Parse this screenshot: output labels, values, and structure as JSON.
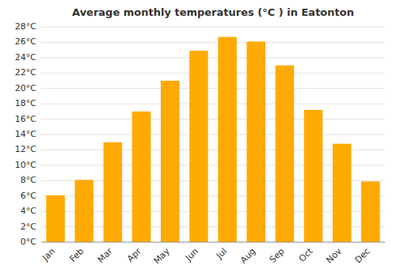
{
  "chart_data": {
    "type": "bar",
    "title": "Average monthly temperatures (°C ) in Eatonton",
    "categories": [
      "Jan",
      "Feb",
      "Mar",
      "Apr",
      "May",
      "Jun",
      "Jul",
      "Aug",
      "Sep",
      "Oct",
      "Nov",
      "Dec"
    ],
    "values": [
      6.1,
      8.1,
      13.0,
      17.0,
      21.0,
      24.9,
      26.7,
      26.1,
      23.0,
      17.2,
      12.8,
      7.9
    ],
    "color": "#FFAA00",
    "ylim": [
      0,
      28
    ],
    "yticks": [
      {
        "value": 0,
        "label": "0°C"
      },
      {
        "value": 2,
        "label": "2°C"
      },
      {
        "value": 4,
        "label": "4°C"
      },
      {
        "value": 6,
        "label": "6°C"
      },
      {
        "value": 8,
        "label": "8°C"
      },
      {
        "value": 10,
        "label": "10°C"
      },
      {
        "value": 12,
        "label": "12°C"
      },
      {
        "value": 14,
        "label": "14°C"
      },
      {
        "value": 16,
        "label": "16°C"
      },
      {
        "value": 18,
        "label": "18°C"
      },
      {
        "value": 20,
        "label": "20°C"
      },
      {
        "value": 22,
        "label": "22°C"
      },
      {
        "value": 24,
        "label": "24°C"
      },
      {
        "value": 26,
        "label": "26°C"
      },
      {
        "value": 28,
        "label": "28°C"
      }
    ],
    "grid": true
  }
}
